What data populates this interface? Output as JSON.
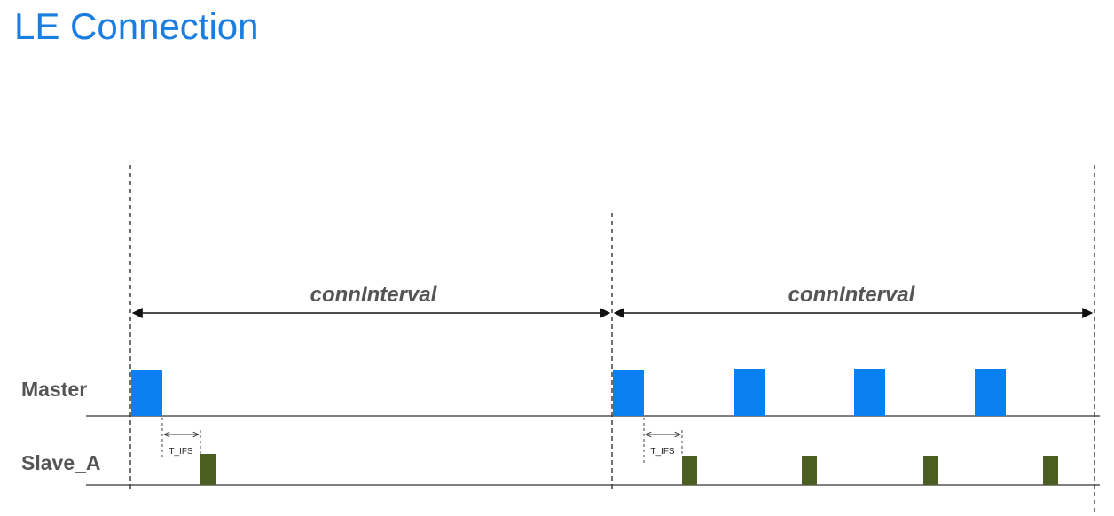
{
  "page": {
    "title": "LE Connection"
  },
  "rows": {
    "master_label": "Master",
    "slave_label": "Slave_A"
  },
  "intervals": [
    {
      "label": "connInterval"
    },
    {
      "label": "connInterval"
    }
  ],
  "tifs_markers": [
    {
      "label": "T_IFS"
    },
    {
      "label": "T_IFS"
    }
  ],
  "colors": {
    "title": "#1a7de0",
    "master_packet": "#0a7ff2",
    "slave_packet": "#4a5e22",
    "axis_line": "#333333",
    "label_text": "#555555",
    "interval_text": "#555555"
  }
}
